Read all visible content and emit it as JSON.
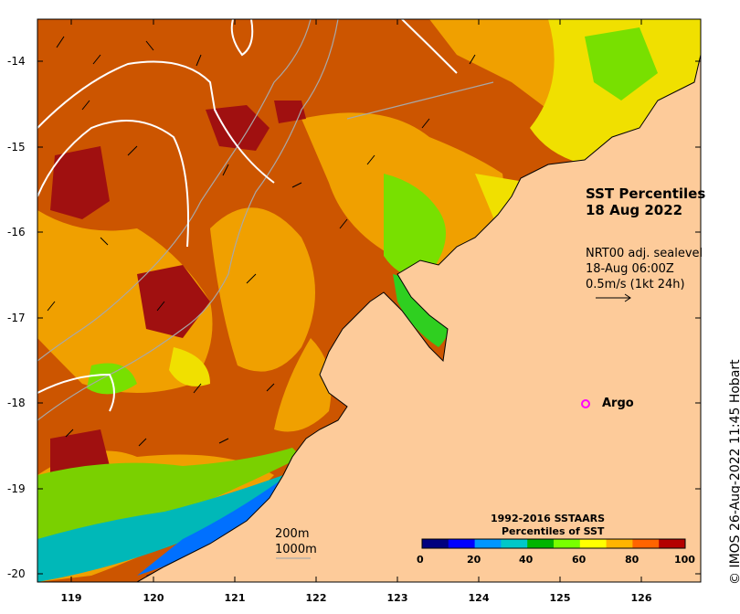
{
  "title": {
    "line1": "SST Percentiles",
    "line2": "18 Aug 2022"
  },
  "current_info": {
    "line1": "NRT00 adj. sealevel",
    "line2": "18-Aug 06:00Z",
    "line3": "0.5m/s (1kt 24h)"
  },
  "argo": {
    "label": "Argo",
    "marker": "circle-marker",
    "color": "#ff00ff"
  },
  "isobaths": [
    "200m",
    "1000m"
  ],
  "colorbar": {
    "title_line1": "1992-2016 SSTAARS",
    "title_line2": "Percentiles of SST",
    "ticks": [
      "0",
      "20",
      "40",
      "60",
      "80",
      "100"
    ],
    "colors": [
      "#00007f",
      "#0000ff",
      "#0096ff",
      "#00c8c8",
      "#00b400",
      "#78ff00",
      "#ffff00",
      "#ffb400",
      "#ff6400",
      "#b40000"
    ]
  },
  "x_ticks": [
    "119",
    "120",
    "121",
    "122",
    "123",
    "124",
    "125",
    "126"
  ],
  "y_ticks": [
    "-14",
    "-15",
    "-16",
    "-17",
    "-18",
    "-19",
    "-20"
  ],
  "credit": "© IMOS 26-Aug-2022 11:45 Hobart",
  "colors": {
    "land": "#fdcb9a",
    "sea_dominant": "#cc5500",
    "sea_mid": "#f0a000"
  }
}
